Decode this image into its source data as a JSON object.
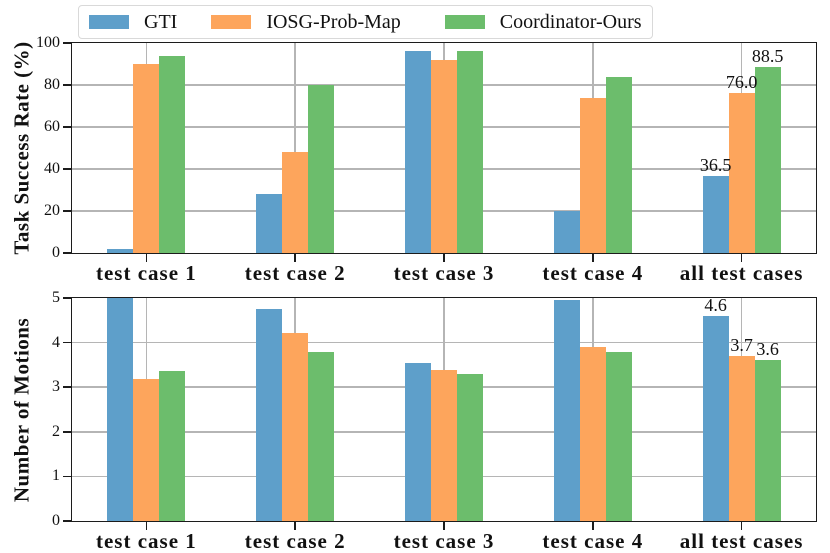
{
  "figure": {
    "background": "#ffffff"
  },
  "legend": {
    "position": "top",
    "items": [
      {
        "label": "GTI",
        "color": "#5E9FCA"
      },
      {
        "label": "IOSG-Prob-Map",
        "color": "#FDA55C"
      },
      {
        "label": "Coordinator-Ours",
        "color": "#6CBD6C"
      }
    ]
  },
  "colors": {
    "gridline": "#b5b5b5",
    "spine": "#1c1c1c",
    "blue": "#5E9FCA",
    "orange": "#FDA55C",
    "green": "#6CBD6C"
  },
  "chart_data": [
    {
      "type": "bar",
      "title": "",
      "ylabel": "Task Success Rate (%)",
      "xlabel": "",
      "categories": [
        "test case 1",
        "test case 2",
        "test case 3",
        "test case 4",
        "all test cases"
      ],
      "ylim": [
        0,
        100
      ],
      "yticks": [
        0,
        20,
        40,
        60,
        80,
        100
      ],
      "grid": true,
      "legend_position": "top",
      "series": [
        {
          "name": "GTI",
          "color": "#5E9FCA",
          "values": [
            2,
            28,
            96,
            20,
            36.5
          ],
          "bar_labels": [
            null,
            null,
            null,
            null,
            "36.5"
          ]
        },
        {
          "name": "IOSG-Prob-Map",
          "color": "#FDA55C",
          "values": [
            90,
            48,
            92,
            74,
            76.0
          ],
          "bar_labels": [
            null,
            null,
            null,
            null,
            "76.0"
          ]
        },
        {
          "name": "Coordinator-Ours",
          "color": "#6CBD6C",
          "values": [
            94,
            80,
            96,
            84,
            88.5
          ],
          "bar_labels": [
            null,
            null,
            null,
            null,
            "88.5"
          ]
        }
      ]
    },
    {
      "type": "bar",
      "title": "",
      "ylabel": "Number of Motions",
      "xlabel": "",
      "categories": [
        "test case 1",
        "test case 2",
        "test case 3",
        "test case 4",
        "all test cases"
      ],
      "ylim": [
        0,
        5
      ],
      "yticks": [
        0,
        1,
        2,
        3,
        4,
        5
      ],
      "grid": true,
      "legend_position": "top",
      "series": [
        {
          "name": "GTI",
          "color": "#5E9FCA",
          "values": [
            5.0,
            4.75,
            3.55,
            4.95,
            4.6
          ],
          "bar_labels": [
            null,
            null,
            null,
            null,
            "4.6"
          ]
        },
        {
          "name": "IOSG-Prob-Map",
          "color": "#FDA55C",
          "values": [
            3.18,
            4.22,
            3.38,
            3.9,
            3.7
          ],
          "bar_labels": [
            null,
            null,
            null,
            null,
            "3.7"
          ]
        },
        {
          "name": "Coordinator-Ours",
          "color": "#6CBD6C",
          "values": [
            3.36,
            3.8,
            3.3,
            3.8,
            3.6
          ],
          "bar_labels": [
            null,
            null,
            null,
            null,
            "3.6"
          ]
        }
      ]
    }
  ]
}
